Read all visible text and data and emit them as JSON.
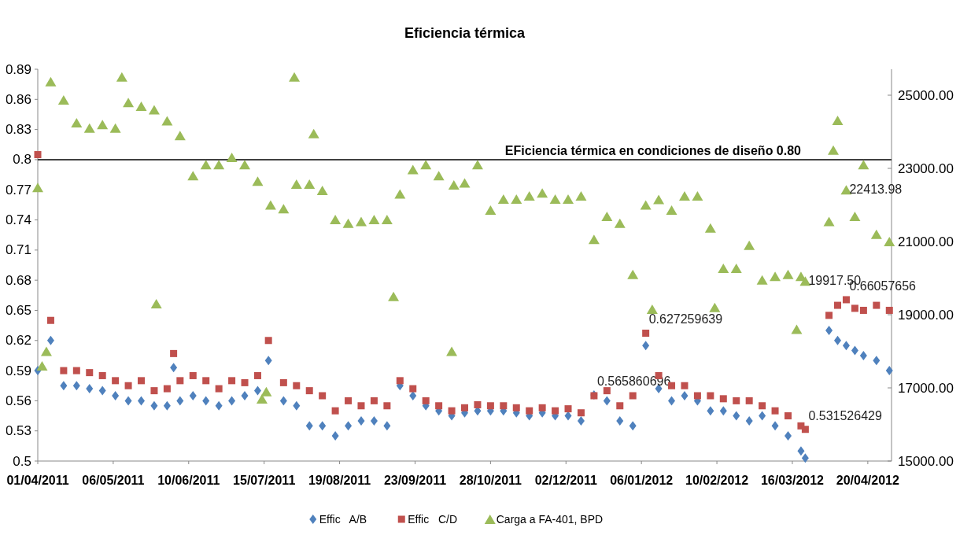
{
  "chart_data": {
    "type": "scatter",
    "title": "Eficiencia térmica",
    "series": [
      {
        "name": "Effic   A/B",
        "color": "#4f81bd",
        "marker": "diamond",
        "x": [
          "2011-04-01",
          "2011-04-07",
          "2011-04-13",
          "2011-04-19",
          "2011-04-25",
          "2011-05-01",
          "2011-05-07",
          "2011-05-13",
          "2011-05-19",
          "2011-05-25",
          "2011-05-31",
          "2011-06-03",
          "2011-06-06",
          "2011-06-12",
          "2011-06-18",
          "2011-06-24",
          "2011-06-30",
          "2011-07-06",
          "2011-07-12",
          "2011-07-17",
          "2011-07-24",
          "2011-07-30",
          "2011-08-05",
          "2011-08-11",
          "2011-08-17",
          "2011-08-23",
          "2011-08-29",
          "2011-09-04",
          "2011-09-10",
          "2011-09-16",
          "2011-09-22",
          "2011-09-28",
          "2011-10-04",
          "2011-10-10",
          "2011-10-16",
          "2011-10-22",
          "2011-10-28",
          "2011-11-03",
          "2011-11-09",
          "2011-11-15",
          "2011-11-21",
          "2011-11-27",
          "2011-12-03",
          "2011-12-09",
          "2011-12-15",
          "2011-12-21",
          "2011-12-27",
          "2012-01-02",
          "2012-01-08",
          "2012-01-14",
          "2012-01-20",
          "2012-01-26",
          "2012-02-01",
          "2012-02-07",
          "2012-02-13",
          "2012-02-19",
          "2012-02-25",
          "2012-03-02",
          "2012-03-08",
          "2012-03-14",
          "2012-03-20",
          "2012-03-22",
          "2012-04-02",
          "2012-04-06",
          "2012-04-10",
          "2012-04-14",
          "2012-04-18",
          "2012-04-24",
          "2012-04-30"
        ],
        "values": [
          0.59,
          0.62,
          0.575,
          0.575,
          0.572,
          0.57,
          0.565,
          0.56,
          0.56,
          0.555,
          0.555,
          0.593,
          0.56,
          0.565,
          0.56,
          0.555,
          0.56,
          0.565,
          0.57,
          0.6,
          0.56,
          0.555,
          0.535,
          0.535,
          0.525,
          0.535,
          0.54,
          0.54,
          0.535,
          0.575,
          0.565,
          0.555,
          0.55,
          0.545,
          0.548,
          0.55,
          0.55,
          0.55,
          0.548,
          0.545,
          0.548,
          0.545,
          0.545,
          0.54,
          0.565860696,
          0.56,
          0.54,
          0.535,
          0.615,
          0.572,
          0.56,
          0.565,
          0.56,
          0.55,
          0.55,
          0.545,
          0.54,
          0.545,
          0.535,
          0.525,
          0.51,
          0.503,
          0.63,
          0.62,
          0.615,
          0.61,
          0.605,
          0.6,
          0.59
        ],
        "value_labels": [
          null,
          null,
          null,
          null,
          null,
          null,
          null,
          null,
          null,
          null,
          null,
          null,
          null,
          null,
          null,
          null,
          null,
          null,
          null,
          null,
          null,
          null,
          null,
          null,
          null,
          null,
          null,
          null,
          null,
          null,
          null,
          null,
          null,
          null,
          null,
          null,
          null,
          null,
          null,
          null,
          null,
          null,
          null,
          null,
          "0.565860696",
          null,
          null,
          null,
          null,
          null,
          null,
          null,
          null,
          null,
          null,
          null,
          null,
          null,
          null,
          null,
          null,
          null,
          null,
          null,
          null,
          null,
          null,
          null,
          null
        ]
      },
      {
        "name": "Effic   C/D",
        "color": "#c0504d",
        "marker": "square",
        "x": [
          "2011-04-01",
          "2011-04-07",
          "2011-04-13",
          "2011-04-19",
          "2011-04-25",
          "2011-05-01",
          "2011-05-07",
          "2011-05-13",
          "2011-05-19",
          "2011-05-25",
          "2011-05-31",
          "2011-06-03",
          "2011-06-06",
          "2011-06-12",
          "2011-06-18",
          "2011-06-24",
          "2011-06-30",
          "2011-07-06",
          "2011-07-12",
          "2011-07-17",
          "2011-07-24",
          "2011-07-30",
          "2011-08-05",
          "2011-08-11",
          "2011-08-17",
          "2011-08-23",
          "2011-08-29",
          "2011-09-04",
          "2011-09-10",
          "2011-09-16",
          "2011-09-22",
          "2011-09-28",
          "2011-10-04",
          "2011-10-10",
          "2011-10-16",
          "2011-10-22",
          "2011-10-28",
          "2011-11-03",
          "2011-11-09",
          "2011-11-15",
          "2011-11-21",
          "2011-11-27",
          "2011-12-03",
          "2011-12-09",
          "2011-12-15",
          "2011-12-21",
          "2011-12-27",
          "2012-01-02",
          "2012-01-08",
          "2012-01-14",
          "2012-01-20",
          "2012-01-26",
          "2012-02-01",
          "2012-02-07",
          "2012-02-13",
          "2012-02-19",
          "2012-02-25",
          "2012-03-02",
          "2012-03-08",
          "2012-03-14",
          "2012-03-20",
          "2012-03-22",
          "2012-04-02",
          "2012-04-06",
          "2012-04-10",
          "2012-04-14",
          "2012-04-18",
          "2012-04-24",
          "2012-04-30"
        ],
        "values": [
          0.805,
          0.64,
          0.59,
          0.59,
          0.588,
          0.585,
          0.58,
          0.575,
          0.58,
          0.57,
          0.572,
          0.607,
          0.58,
          0.585,
          0.58,
          0.572,
          0.58,
          0.578,
          0.585,
          0.62,
          0.578,
          0.575,
          0.57,
          0.565,
          0.55,
          0.56,
          0.555,
          0.56,
          0.555,
          0.58,
          0.572,
          0.56,
          0.555,
          0.55,
          0.553,
          0.556,
          0.555,
          0.555,
          0.553,
          0.55,
          0.553,
          0.55,
          0.552,
          0.548,
          0.565,
          0.57,
          0.555,
          0.565,
          0.627259639,
          0.585,
          0.575,
          0.575,
          0.565,
          0.565,
          0.562,
          0.56,
          0.56,
          0.555,
          0.55,
          0.545,
          0.535,
          0.531526429,
          0.645,
          0.655,
          0.66057656,
          0.652,
          0.65,
          0.655,
          0.65
        ],
        "value_labels": [
          null,
          null,
          null,
          null,
          null,
          null,
          null,
          null,
          null,
          null,
          null,
          null,
          null,
          null,
          null,
          null,
          null,
          null,
          null,
          null,
          null,
          null,
          null,
          null,
          null,
          null,
          null,
          null,
          null,
          null,
          null,
          null,
          null,
          null,
          null,
          null,
          null,
          null,
          null,
          null,
          null,
          null,
          null,
          null,
          null,
          null,
          null,
          null,
          "0.627259639",
          null,
          null,
          null,
          null,
          null,
          null,
          null,
          null,
          null,
          null,
          null,
          null,
          "0.531526429",
          null,
          null,
          "0.66057656",
          null,
          null,
          null,
          null
        ]
      },
      {
        "name": "Carga a FA-401, BPD",
        "color": "#9bbb59",
        "marker": "triangle",
        "axis": "y2",
        "x": [
          "2011-04-01",
          "2011-04-03",
          "2011-04-05",
          "2011-04-07",
          "2011-04-13",
          "2011-04-19",
          "2011-04-25",
          "2011-05-01",
          "2011-05-07",
          "2011-05-10",
          "2011-05-13",
          "2011-05-19",
          "2011-05-25",
          "2011-05-26",
          "2011-05-31",
          "2011-06-06",
          "2011-06-12",
          "2011-06-18",
          "2011-06-24",
          "2011-06-30",
          "2011-07-06",
          "2011-07-12",
          "2011-07-14",
          "2011-07-16",
          "2011-07-18",
          "2011-07-24",
          "2011-07-29",
          "2011-07-30",
          "2011-08-05",
          "2011-08-07",
          "2011-08-11",
          "2011-08-17",
          "2011-08-23",
          "2011-08-29",
          "2011-09-04",
          "2011-09-10",
          "2011-09-13",
          "2011-09-16",
          "2011-09-22",
          "2011-09-28",
          "2011-10-04",
          "2011-10-10",
          "2011-10-11",
          "2011-10-16",
          "2011-10-22",
          "2011-10-28",
          "2011-11-03",
          "2011-11-09",
          "2011-11-15",
          "2011-11-21",
          "2011-11-27",
          "2011-12-03",
          "2011-12-09",
          "2011-12-15",
          "2011-12-21",
          "2011-12-27",
          "2012-01-02",
          "2012-01-08",
          "2012-01-11",
          "2012-01-14",
          "2012-01-20",
          "2012-01-26",
          "2012-02-01",
          "2012-02-07",
          "2012-02-09",
          "2012-02-13",
          "2012-02-19",
          "2012-02-25",
          "2012-03-02",
          "2012-03-08",
          "2012-03-14",
          "2012-03-18",
          "2012-03-20",
          "2012-03-22",
          "2012-04-02",
          "2012-04-04",
          "2012-04-06",
          "2012-04-10",
          "2012-04-14",
          "2012-04-18",
          "2012-04-24",
          "2012-04-30"
        ],
        "values": [
          22480,
          17600,
          18000,
          25370,
          24870,
          24250,
          24100,
          24200,
          24100,
          25500,
          24800,
          24700,
          24600,
          19300,
          24300,
          23900,
          22800,
          23100,
          23100,
          23300,
          23100,
          22650,
          16700,
          16900,
          22000,
          21900,
          25500,
          22570,
          22570,
          23950,
          22400,
          21600,
          21500,
          21550,
          21600,
          21600,
          19500,
          22300,
          22970,
          23100,
          22800,
          18000,
          22550,
          22600,
          23100,
          21860,
          22160,
          22160,
          22250,
          22330,
          22160,
          22160,
          22250,
          21060,
          21690,
          21500,
          20100,
          22000,
          19150,
          22150,
          21860,
          22250,
          22250,
          21370,
          19200,
          20270,
          20270,
          20900,
          19950,
          20050,
          20100,
          18600,
          20050,
          19917.5,
          21550,
          23500,
          24310,
          22413.98,
          21690,
          23100,
          21200,
          21000
        ],
        "value_labels": [
          null,
          null,
          null,
          null,
          null,
          null,
          null,
          null,
          null,
          null,
          null,
          null,
          null,
          null,
          null,
          null,
          null,
          null,
          null,
          null,
          null,
          null,
          null,
          null,
          null,
          null,
          null,
          null,
          null,
          null,
          null,
          null,
          null,
          null,
          null,
          null,
          null,
          null,
          null,
          null,
          null,
          null,
          null,
          null,
          null,
          null,
          null,
          null,
          null,
          null,
          null,
          null,
          null,
          null,
          null,
          null,
          null,
          null,
          null,
          null,
          null,
          null,
          null,
          null,
          null,
          null,
          null,
          null,
          null,
          null,
          null,
          null,
          null,
          "19917.50",
          null,
          null,
          null,
          "22413.98",
          null,
          null,
          null,
          null
        ]
      }
    ],
    "xlim": [
      "2011-04-01",
      "2012-05-01"
    ],
    "xticks": [
      {
        "value": "2011-04-01",
        "label": "01/04/2011"
      },
      {
        "value": "2011-05-06",
        "label": "06/05/2011"
      },
      {
        "value": "2011-06-10",
        "label": "10/06/2011"
      },
      {
        "value": "2011-07-15",
        "label": "15/07/2011"
      },
      {
        "value": "2011-08-19",
        "label": "19/08/2011"
      },
      {
        "value": "2011-09-23",
        "label": "23/09/2011"
      },
      {
        "value": "2011-10-28",
        "label": "28/10/2011"
      },
      {
        "value": "2011-12-02",
        "label": "02/12/2011"
      },
      {
        "value": "2012-01-06",
        "label": "06/01/2012"
      },
      {
        "value": "2012-02-10",
        "label": "10/02/2012"
      },
      {
        "value": "2012-03-16",
        "label": "16/03/2012"
      },
      {
        "value": "2012-04-20",
        "label": "20/04/2012"
      }
    ],
    "ylim": [
      0.5,
      0.89
    ],
    "yticks": [
      0.5,
      0.53,
      0.56,
      0.59,
      0.62,
      0.65,
      0.68,
      0.71,
      0.74,
      0.77,
      0.8,
      0.83,
      0.86,
      0.89
    ],
    "y2lim": [
      15000,
      25710
    ],
    "y2ticks": [
      {
        "value": 15000,
        "label": "15000.00"
      },
      {
        "value": 17000,
        "label": "17000.00"
      },
      {
        "value": 19000,
        "label": "19000.00"
      },
      {
        "value": 21000,
        "label": "21000.00"
      },
      {
        "value": 23000,
        "label": "23000.00"
      },
      {
        "value": 25000,
        "label": "25000.00"
      }
    ],
    "ref_lines": [
      {
        "axis": "y",
        "value": 0.8,
        "label": "EFiciencia térmica en condiciones de diseño  0.80",
        "color": "#404040"
      }
    ],
    "grid": false,
    "legend": "bottom"
  }
}
